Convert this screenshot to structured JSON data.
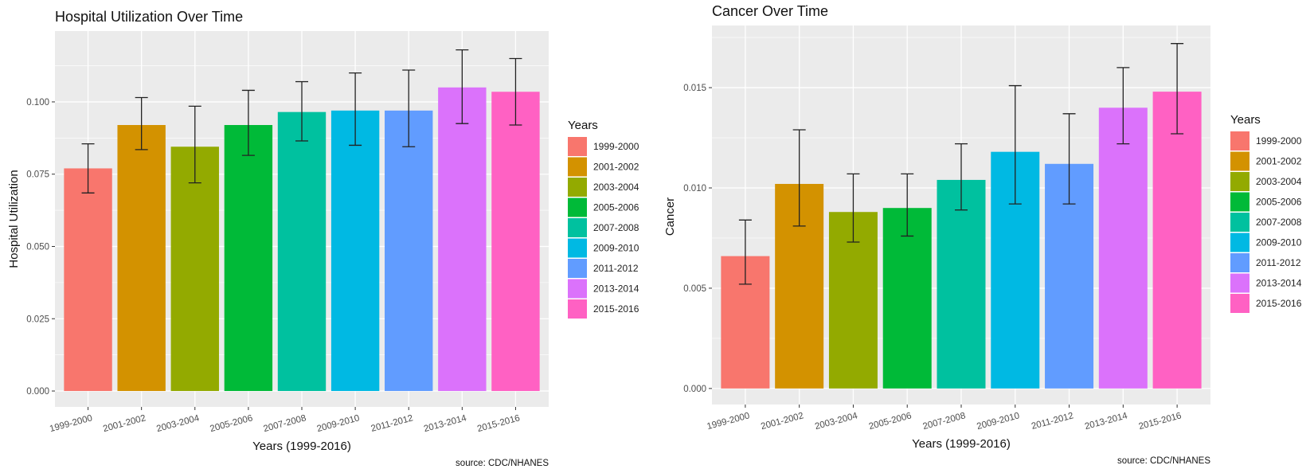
{
  "chart_data": [
    {
      "type": "bar",
      "title": "Hospital Utilization Over Time",
      "xlabel": "Years (1999-2016)",
      "ylabel": "Hospital Utilization",
      "caption": "source: CDC/NHANES",
      "legend_title": "Years",
      "legend_placement": "right",
      "grid": true,
      "ylim": [
        -0.0055,
        0.1245
      ],
      "yticks": [
        0,
        0.025,
        0.05,
        0.075,
        0.1
      ],
      "ytick_labels": [
        "0.000",
        "0.025",
        "0.050",
        "0.075",
        "0.100"
      ],
      "categories": [
        "1999-2000",
        "2001-2002",
        "2003-2004",
        "2005-2006",
        "2007-2008",
        "2009-2010",
        "2011-2012",
        "2013-2014",
        "2015-2016"
      ],
      "values": [
        0.077,
        0.092,
        0.0845,
        0.092,
        0.0965,
        0.097,
        0.097,
        0.105,
        0.1035
      ],
      "error_low": [
        0.0685,
        0.0835,
        0.072,
        0.0815,
        0.0865,
        0.085,
        0.0845,
        0.0925,
        0.092
      ],
      "error_high": [
        0.0855,
        0.1015,
        0.0985,
        0.104,
        0.107,
        0.11,
        0.111,
        0.118,
        0.115
      ],
      "colors": [
        "#F8766D",
        "#D39200",
        "#93AA00",
        "#00BA38",
        "#00C19F",
        "#00B9E3",
        "#619CFF",
        "#DB72FB",
        "#FF61C3"
      ]
    },
    {
      "type": "bar",
      "title": "Cancer Over Time",
      "xlabel": "Years (1999-2016)",
      "ylabel": "Cancer",
      "caption": "source: CDC/NHANES",
      "legend_title": "Years",
      "legend_placement": "right",
      "grid": true,
      "ylim": [
        -0.0008,
        0.0181
      ],
      "yticks": [
        0,
        0.005,
        0.01,
        0.015
      ],
      "ytick_labels": [
        "0.000",
        "0.005",
        "0.010",
        "0.015"
      ],
      "categories": [
        "1999-2000",
        "2001-2002",
        "2003-2004",
        "2005-2006",
        "2007-2008",
        "2009-2010",
        "2011-2012",
        "2013-2014",
        "2015-2016"
      ],
      "values": [
        0.0066,
        0.0102,
        0.0088,
        0.009,
        0.0104,
        0.0118,
        0.0112,
        0.014,
        0.0148
      ],
      "error_low": [
        0.0052,
        0.0081,
        0.0073,
        0.0076,
        0.0089,
        0.0092,
        0.0092,
        0.0122,
        0.0127
      ],
      "error_high": [
        0.0084,
        0.0129,
        0.0107,
        0.0107,
        0.0122,
        0.0151,
        0.0137,
        0.016,
        0.0172
      ],
      "colors": [
        "#F8766D",
        "#D39200",
        "#93AA00",
        "#00BA38",
        "#00C19F",
        "#00B9E3",
        "#619CFF",
        "#DB72FB",
        "#FF61C3"
      ]
    }
  ]
}
